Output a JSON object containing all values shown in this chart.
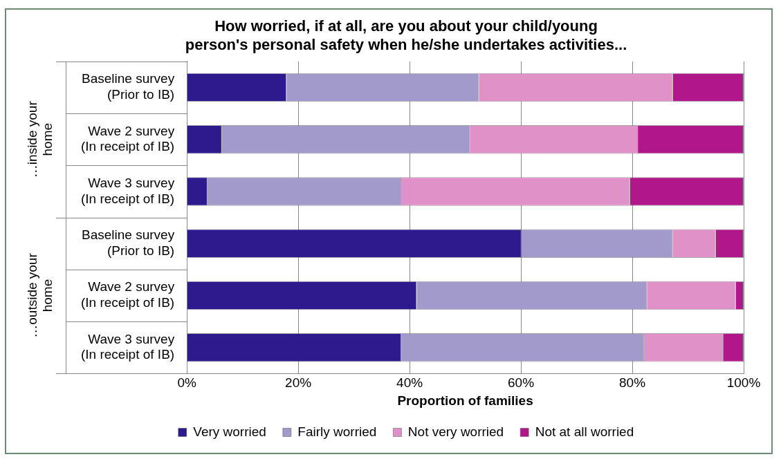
{
  "chart_data": {
    "type": "bar",
    "orientation": "horizontal",
    "stacked": true,
    "title": "How worried, if at all, are you about your child/young\nperson's personal safety when he/she undertakes activities...",
    "xlabel": "Proportion of families",
    "categories": [
      "Baseline survey\n(Prior to IB)",
      "Wave 2 survey\n(In receipt of IB)",
      "Wave 3 survey\n(In receipt of IB)",
      "Baseline survey\n(Prior to IB)",
      "Wave 2 survey\n(In receipt of IB)",
      "Wave 3 survey\n(In receipt of IB)"
    ],
    "annotations": [
      "…inside your\nhome",
      "…outside your\nhome"
    ],
    "series": [
      {
        "name": "Very worried",
        "color": "#2e1a8c",
        "values": [
          17.9,
          6.3,
          3.7,
          60.1,
          41.3,
          38.5
        ]
      },
      {
        "name": "Fairly worried",
        "color": "#a29acb",
        "values": [
          34.6,
          44.6,
          34.8,
          27.2,
          41.4,
          43.6
        ]
      },
      {
        "name": "Not very worried",
        "color": "#e091c8",
        "values": [
          34.8,
          30.1,
          41.1,
          7.7,
          15.9,
          14.2
        ]
      },
      {
        "name": "Not at all worried",
        "color": "#b0188a",
        "values": [
          12.7,
          19.0,
          20.4,
          5.0,
          1.4,
          3.7
        ]
      }
    ],
    "xlim": [
      0,
      100
    ],
    "xticks": [
      {
        "value": 0,
        "label": "0%"
      },
      {
        "value": 20,
        "label": "20%"
      },
      {
        "value": 40,
        "label": "40%"
      },
      {
        "value": 60,
        "label": "60%"
      },
      {
        "value": 80,
        "label": "80%"
      },
      {
        "value": 100,
        "label": "100%"
      }
    ],
    "grid": "x",
    "legend": "bottom"
  }
}
